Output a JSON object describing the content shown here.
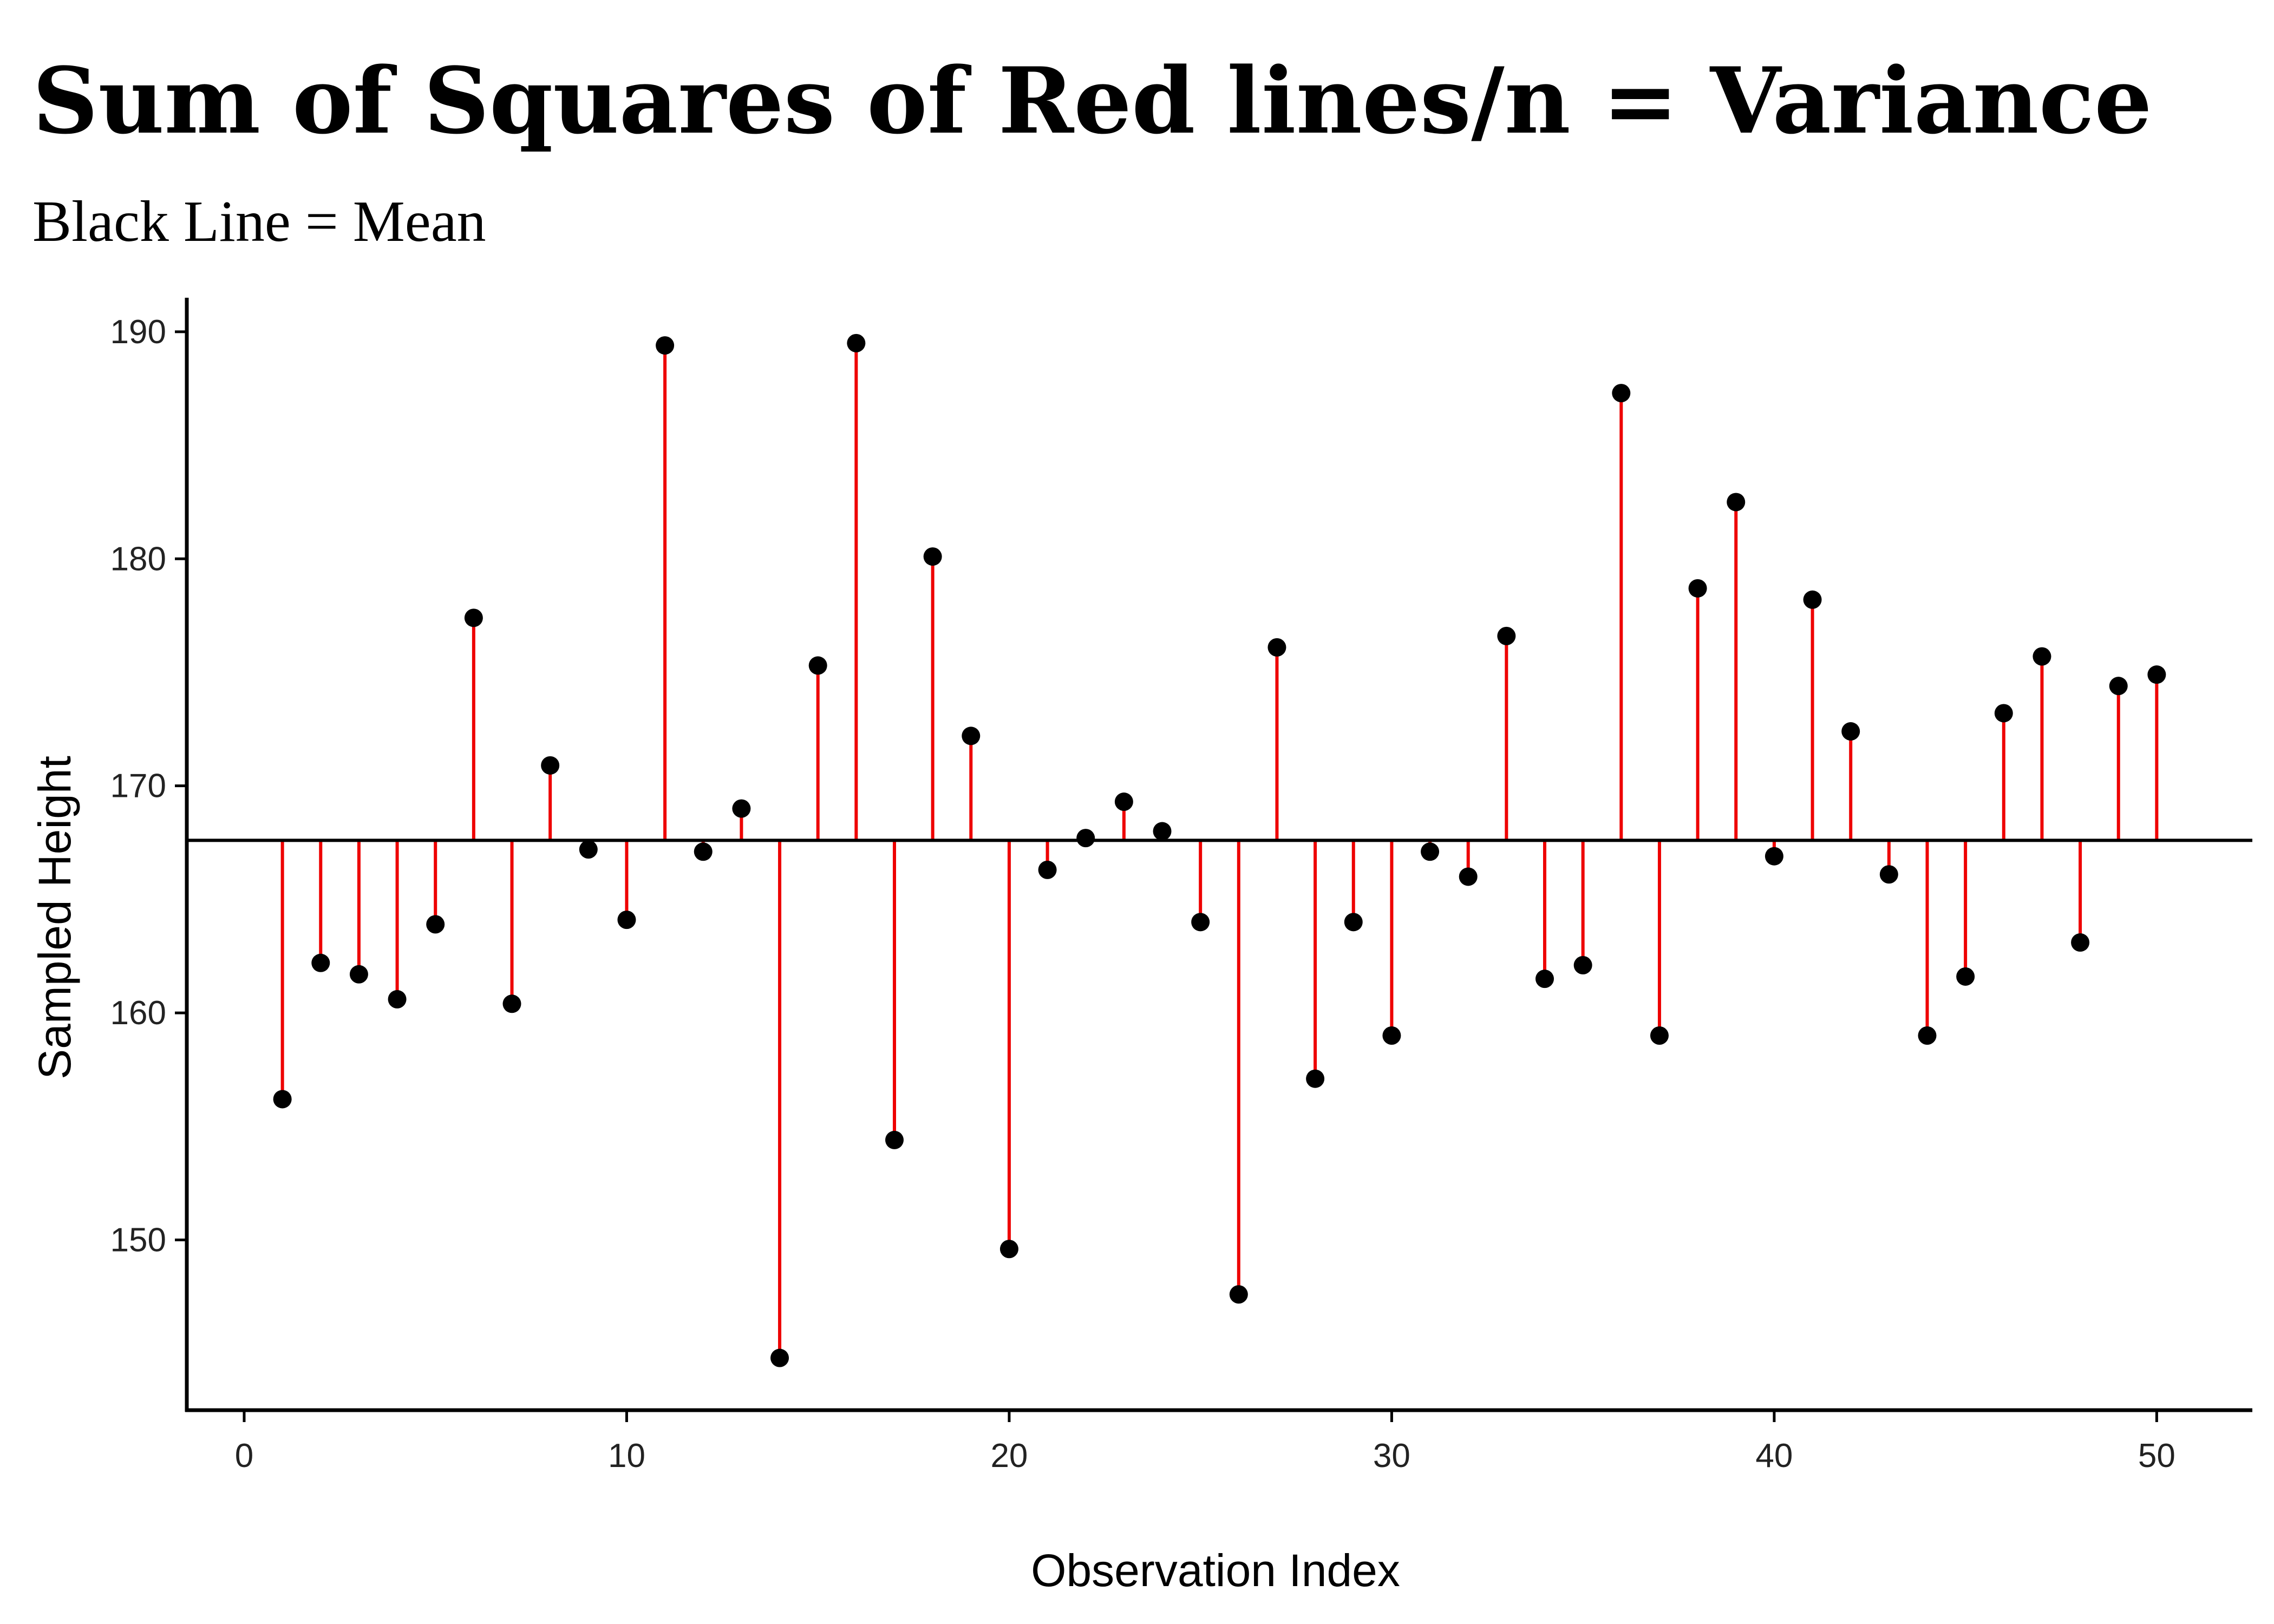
{
  "chart_data": {
    "type": "scatter",
    "title": "Sum of Squares of Red lines/n = Variance",
    "subtitle": "Black Line = Mean",
    "xlabel": "Observation Index",
    "ylabel": "Sampled Height",
    "xlim": [
      -1.5,
      52.5
    ],
    "ylim": [
      142.5,
      191.5
    ],
    "xticks": [
      0,
      10,
      20,
      30,
      40,
      50
    ],
    "yticks": [
      150,
      160,
      170,
      180,
      190
    ],
    "mean": 167.6,
    "grid": false,
    "legend": "none",
    "colors": {
      "residual": "#ee0000",
      "point": "#000000",
      "mean_line": "#000000",
      "axis": "#000000"
    },
    "series": [
      {
        "name": "Sampled Height",
        "x": [
          1,
          2,
          3,
          4,
          5,
          6,
          7,
          8,
          9,
          10,
          11,
          12,
          13,
          14,
          15,
          16,
          17,
          18,
          19,
          20,
          21,
          22,
          23,
          24,
          25,
          26,
          27,
          28,
          29,
          30,
          31,
          32,
          33,
          34,
          35,
          36,
          37,
          38,
          39,
          40,
          41,
          42,
          43,
          44,
          45,
          46,
          47,
          48,
          49,
          50
        ],
        "values": [
          156.2,
          162.2,
          161.7,
          160.6,
          163.9,
          177.4,
          160.4,
          170.9,
          167.2,
          164.1,
          189.4,
          167.1,
          169.0,
          144.8,
          175.3,
          189.5,
          154.4,
          180.1,
          172.2,
          149.6,
          166.3,
          167.7,
          169.3,
          168.0,
          164.0,
          147.6,
          176.1,
          157.1,
          164.0,
          159.0,
          167.1,
          166.0,
          176.6,
          161.5,
          162.1,
          187.3,
          159.0,
          178.7,
          182.5,
          166.9,
          178.2,
          172.4,
          166.1,
          159.0,
          161.6,
          173.2,
          175.7,
          163.1,
          174.4,
          174.9
        ]
      }
    ]
  }
}
